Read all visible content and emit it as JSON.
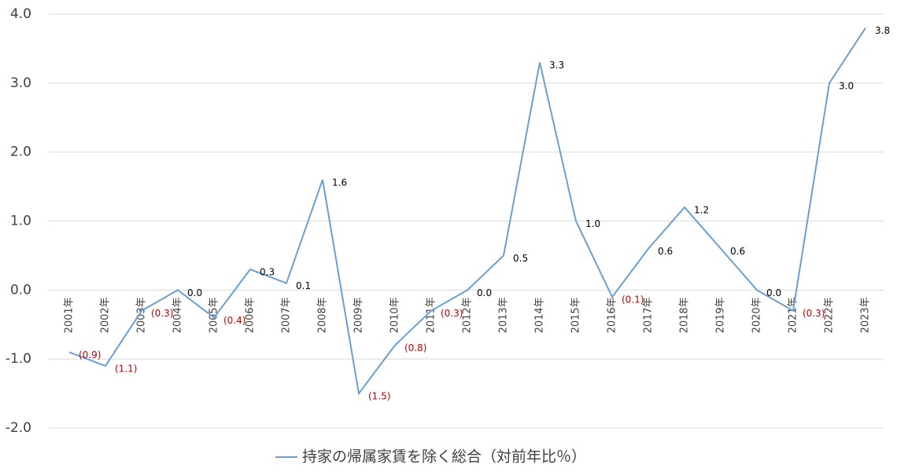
{
  "chart_data": {
    "type": "line",
    "categories": [
      "2001年",
      "2002年",
      "2003年",
      "2004年",
      "2005年",
      "2006年",
      "2007年",
      "2008年",
      "2009年",
      "2010年",
      "2011年",
      "2012年",
      "2013年",
      "2014年",
      "2015年",
      "2016年",
      "2017年",
      "2018年",
      "2019年",
      "2020年",
      "2021年",
      "2022年",
      "2023年"
    ],
    "series": [
      {
        "name": "持家の帰属家賃を除く総合（対前年比％）",
        "color": "#6a9fd4",
        "values": [
          -0.9,
          -1.1,
          -0.3,
          0.0,
          -0.4,
          0.3,
          0.1,
          1.6,
          -1.5,
          -0.8,
          -0.3,
          0.0,
          0.5,
          3.3,
          1.0,
          -0.1,
          0.6,
          1.2,
          0.6,
          0.0,
          -0.3,
          3.0,
          3.8
        ],
        "value_labels": [
          "(0.9)",
          "(1.1)",
          "(0.3)",
          "0.0",
          "(0.4)",
          "0.3",
          "0.1",
          "1.6",
          "(1.5)",
          "(0.8)",
          "(0.3)",
          "0.0",
          "0.5",
          "3.3",
          "1.0",
          "(0.1)",
          "0.6",
          "1.2",
          "0.6",
          "0.0",
          "(0.3)",
          "3.0",
          "3.8"
        ]
      }
    ],
    "label_color": "#000000",
    "negative_label_color": "#c00000",
    "ylim": [
      -2,
      4
    ],
    "yticks": [
      {
        "value": -2,
        "label": "-2.0"
      },
      {
        "value": -1,
        "label": "-1.0"
      },
      {
        "value": 0,
        "label": "0.0"
      },
      {
        "value": 1,
        "label": "1.0"
      },
      {
        "value": 2,
        "label": "2.0"
      },
      {
        "value": 3,
        "label": "3.0"
      },
      {
        "value": 4,
        "label": "4.0"
      }
    ],
    "grid": true,
    "legend": "bottom"
  }
}
